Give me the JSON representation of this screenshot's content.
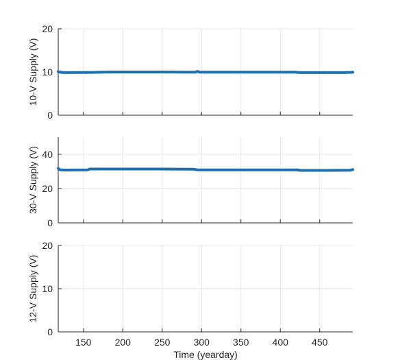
{
  "chart_data": [
    {
      "type": "line",
      "ylabel": "10-V Supply (V)",
      "xlabel": "",
      "xlim": [
        118,
        492
      ],
      "ylim": [
        0,
        20
      ],
      "yticks": [
        0,
        10,
        20
      ],
      "xticks": [
        150,
        200,
        250,
        300,
        350,
        400,
        450
      ],
      "show_xtick_labels": false,
      "grid": true,
      "color": "#1f6fb0",
      "series": [
        {
          "x": [
            118,
            122,
            125,
            160,
            185,
            250,
            292,
            295,
            298,
            330,
            380,
            420,
            425,
            460,
            480,
            488,
            492
          ],
          "y": [
            10.1,
            9.9,
            9.85,
            9.9,
            10.0,
            10.0,
            9.95,
            10.15,
            9.95,
            9.95,
            9.95,
            9.95,
            9.85,
            9.85,
            9.85,
            9.9,
            9.95
          ]
        }
      ]
    },
    {
      "type": "line",
      "ylabel": "30-V Supply (V)",
      "xlabel": "",
      "xlim": [
        118,
        492
      ],
      "ylim": [
        0,
        50
      ],
      "yticks": [
        0,
        20,
        40
      ],
      "xticks": [
        150,
        200,
        250,
        300,
        350,
        400,
        450
      ],
      "show_xtick_labels": false,
      "grid": true,
      "color": "#1f6fb0",
      "series": [
        {
          "x": [
            118,
            120,
            125,
            155,
            158,
            200,
            250,
            290,
            295,
            330,
            380,
            422,
            425,
            460,
            488,
            492
          ],
          "y": [
            31.8,
            31.0,
            30.8,
            30.9,
            31.4,
            31.4,
            31.4,
            31.3,
            30.9,
            30.9,
            30.9,
            30.9,
            30.6,
            30.6,
            30.7,
            31.1
          ]
        }
      ]
    },
    {
      "type": "line",
      "ylabel": "12-V Supply (V)",
      "xlabel": "Time (yearday)",
      "xlim": [
        118,
        492
      ],
      "ylim": [
        0,
        20
      ],
      "yticks": [
        0,
        10,
        20
      ],
      "xticks": [
        150,
        200,
        250,
        300,
        350,
        400,
        450
      ],
      "show_xtick_labels": true,
      "grid": true,
      "color": "#1f6fb0",
      "series": []
    }
  ]
}
